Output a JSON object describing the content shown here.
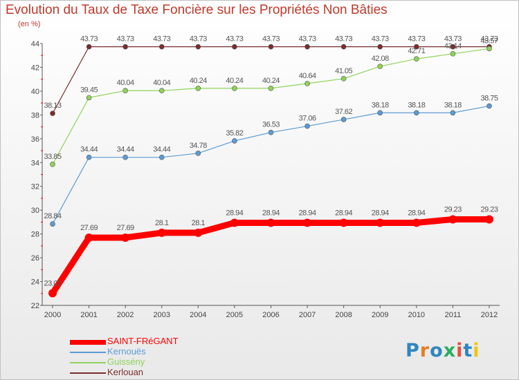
{
  "title": "Evolution du Taux de Taxe Foncière sur les Propriétés Non Bâties",
  "subtitle": "(en %)",
  "logo": {
    "text": "Proxiti",
    "colors": [
      "#2e86c1",
      "#e67e22",
      "#2e86c1",
      "#27ae60",
      "#e74c3c",
      "#2e86c1",
      "#f1c40f"
    ]
  },
  "colors": {
    "title": "#c0392b",
    "axis": "#555555",
    "grid": "#d8d8d8",
    "tick_mark": "#ff0000"
  },
  "chart_data": {
    "type": "line",
    "x": [
      "2000",
      "2001",
      "2002",
      "2003",
      "2004",
      "2005",
      "2006",
      "2007",
      "2008",
      "2009",
      "2010",
      "2011",
      "2012"
    ],
    "ylim": [
      22,
      44
    ],
    "yticks": [
      22,
      24,
      26,
      28,
      30,
      32,
      34,
      36,
      38,
      40,
      42,
      44
    ],
    "grid": "off",
    "legend_position": "bottom-left",
    "series": [
      {
        "name": "SAINT-FRéGANT",
        "color": "#ff0000",
        "values": [
          23.02,
          27.69,
          27.69,
          28.1,
          28.1,
          28.94,
          28.94,
          28.94,
          28.94,
          28.94,
          28.94,
          29.23,
          29.23
        ],
        "labels": [
          "23.02",
          "27.69",
          "27.69",
          "28.1",
          "28.1",
          "28.94",
          "28.94",
          "28.94",
          "28.94",
          "28.94",
          "28.94",
          "29.23",
          "29.23"
        ]
      },
      {
        "name": "Kernouës",
        "color": "#5b9bd5",
        "values": [
          28.84,
          34.44,
          34.44,
          34.44,
          34.78,
          35.82,
          36.53,
          37.06,
          37.62,
          38.18,
          38.18,
          38.18,
          38.75
        ],
        "labels": [
          "28.84",
          "34.44",
          "34.44",
          "34.44",
          "34.78",
          "35.82",
          "36.53",
          "37.06",
          "37.62",
          "38.18",
          "38.18",
          "38.18",
          "38.75"
        ]
      },
      {
        "name": "Guissény",
        "color": "#8fd35a",
        "values": [
          33.85,
          39.45,
          40.04,
          40.04,
          40.24,
          40.24,
          40.24,
          40.64,
          41.05,
          42.08,
          42.71,
          43.14,
          43.57
        ],
        "labels": [
          "33.85",
          "39.45",
          "40.04",
          "40.04",
          "40.24",
          "40.24",
          "40.24",
          "40.64",
          "41.05",
          "42.08",
          "42.71",
          "43.14",
          "43.57"
        ]
      },
      {
        "name": "Kerlouan",
        "color": "#7b2c2c",
        "values": [
          38.13,
          43.73,
          43.73,
          43.73,
          43.73,
          43.73,
          43.73,
          43.73,
          43.73,
          43.73,
          43.73,
          43.73,
          43.73
        ],
        "labels": [
          "38.13",
          "43.73",
          "43.73",
          "43.73",
          "43.73",
          "43.73",
          "43.73",
          "43.73",
          "43.73",
          "43.73",
          "43.73",
          "43.73",
          "43.73"
        ]
      }
    ]
  }
}
